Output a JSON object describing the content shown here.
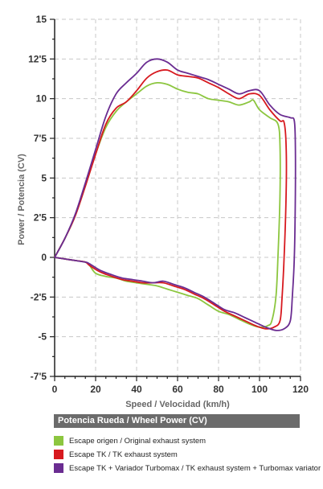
{
  "chart_data": {
    "type": "line",
    "xlabel": "Speed / Velocidad (km/h)",
    "ylabel": "Power / Potencia (CV)",
    "xlim": [
      0,
      120
    ],
    "ylim": [
      -7.5,
      15
    ],
    "x_ticks": [
      0,
      20,
      40,
      60,
      80,
      100,
      120
    ],
    "x_tick_labels": [
      "0",
      "20",
      "40",
      "60",
      "80",
      "100",
      "120"
    ],
    "y_ticks": [
      -7.5,
      -5,
      -2.5,
      0,
      2.5,
      5,
      7.5,
      10,
      12.5,
      15
    ],
    "y_tick_labels": [
      "-7'5",
      "-5",
      "-2'5",
      "0",
      "2'5",
      "5",
      "7'5",
      "10",
      "12'5",
      "15"
    ],
    "grid": true,
    "legend_title": "Potencia Rueda / Wheel Power (CV)",
    "series": [
      {
        "name": "Escape origen / Original exhaust system",
        "color": "#8cc63f",
        "points": [
          [
            0,
            0
          ],
          [
            5,
            1.2
          ],
          [
            10,
            2.6
          ],
          [
            15,
            4.5
          ],
          [
            20,
            6.5
          ],
          [
            25,
            8.2
          ],
          [
            30,
            9.2
          ],
          [
            35,
            9.8
          ],
          [
            40,
            10.3
          ],
          [
            45,
            10.8
          ],
          [
            50,
            11.0
          ],
          [
            55,
            10.9
          ],
          [
            60,
            10.6
          ],
          [
            65,
            10.4
          ],
          [
            70,
            10.3
          ],
          [
            75,
            10.0
          ],
          [
            80,
            9.9
          ],
          [
            85,
            9.8
          ],
          [
            90,
            9.6
          ],
          [
            95,
            9.8
          ],
          [
            97,
            9.9
          ],
          [
            100,
            9.3
          ],
          [
            105,
            8.8
          ],
          [
            109,
            8.4
          ],
          [
            110,
            7.0
          ],
          [
            110,
            4.0
          ],
          [
            109,
            0
          ],
          [
            108,
            -2.5
          ],
          [
            106,
            -4.0
          ],
          [
            104,
            -4.3
          ],
          [
            100,
            -4.4
          ],
          [
            95,
            -4.2
          ],
          [
            90,
            -3.9
          ],
          [
            85,
            -3.6
          ],
          [
            80,
            -3.4
          ],
          [
            75,
            -3.0
          ],
          [
            70,
            -2.6
          ],
          [
            65,
            -2.4
          ],
          [
            60,
            -2.2
          ],
          [
            55,
            -2.0
          ],
          [
            50,
            -1.8
          ],
          [
            45,
            -1.7
          ],
          [
            40,
            -1.6
          ],
          [
            35,
            -1.5
          ],
          [
            30,
            -1.3
          ],
          [
            25,
            -1.2
          ],
          [
            20,
            -1.0
          ],
          [
            17,
            -0.5
          ],
          [
            15,
            -0.3
          ],
          [
            10,
            -0.2
          ],
          [
            5,
            -0.1
          ],
          [
            0,
            0
          ]
        ]
      },
      {
        "name": "Escape TK / TK exhaust  system",
        "color": "#d7191f",
        "points": [
          [
            0,
            0
          ],
          [
            5,
            1.2
          ],
          [
            10,
            2.6
          ],
          [
            15,
            4.5
          ],
          [
            20,
            6.5
          ],
          [
            25,
            8.4
          ],
          [
            30,
            9.4
          ],
          [
            35,
            9.8
          ],
          [
            40,
            10.5
          ],
          [
            45,
            11.3
          ],
          [
            50,
            11.7
          ],
          [
            55,
            11.8
          ],
          [
            60,
            11.5
          ],
          [
            65,
            11.4
          ],
          [
            70,
            11.3
          ],
          [
            75,
            11.0
          ],
          [
            80,
            10.7
          ],
          [
            85,
            10.3
          ],
          [
            90,
            10.0
          ],
          [
            95,
            10.3
          ],
          [
            100,
            10.2
          ],
          [
            105,
            9.3
          ],
          [
            110,
            8.6
          ],
          [
            112,
            8.5
          ],
          [
            113,
            7.0
          ],
          [
            113,
            4.0
          ],
          [
            112,
            0
          ],
          [
            111,
            -2.5
          ],
          [
            110,
            -4.0
          ],
          [
            107,
            -4.4
          ],
          [
            103,
            -4.5
          ],
          [
            98,
            -4.3
          ],
          [
            93,
            -4.0
          ],
          [
            88,
            -3.7
          ],
          [
            83,
            -3.4
          ],
          [
            78,
            -3.0
          ],
          [
            73,
            -2.6
          ],
          [
            68,
            -2.3
          ],
          [
            63,
            -2.0
          ],
          [
            58,
            -1.8
          ],
          [
            53,
            -1.6
          ],
          [
            48,
            -1.6
          ],
          [
            43,
            -1.6
          ],
          [
            38,
            -1.5
          ],
          [
            33,
            -1.4
          ],
          [
            28,
            -1.2
          ],
          [
            22,
            -0.9
          ],
          [
            17,
            -0.5
          ],
          [
            15,
            -0.3
          ],
          [
            10,
            -0.2
          ],
          [
            5,
            -0.1
          ],
          [
            0,
            0
          ]
        ]
      },
      {
        "name": "Escape TK + Variador Turbomax  / TK exhaust  system + Turbomax variator",
        "color": "#6a2c91",
        "points": [
          [
            0,
            0
          ],
          [
            5,
            1.2
          ],
          [
            10,
            2.7
          ],
          [
            15,
            4.7
          ],
          [
            20,
            6.8
          ],
          [
            25,
            8.9
          ],
          [
            30,
            10.3
          ],
          [
            35,
            11.0
          ],
          [
            40,
            11.6
          ],
          [
            45,
            12.3
          ],
          [
            50,
            12.5
          ],
          [
            55,
            12.3
          ],
          [
            60,
            11.8
          ],
          [
            65,
            11.6
          ],
          [
            70,
            11.4
          ],
          [
            75,
            11.2
          ],
          [
            80,
            10.9
          ],
          [
            85,
            10.6
          ],
          [
            90,
            10.3
          ],
          [
            95,
            10.5
          ],
          [
            100,
            10.5
          ],
          [
            105,
            9.6
          ],
          [
            110,
            9.0
          ],
          [
            115,
            8.8
          ],
          [
            117,
            8.6
          ],
          [
            117.5,
            7.0
          ],
          [
            117.5,
            4.0
          ],
          [
            117,
            0
          ],
          [
            116,
            -2.5
          ],
          [
            115,
            -4.0
          ],
          [
            112,
            -4.5
          ],
          [
            108,
            -4.6
          ],
          [
            103,
            -4.4
          ],
          [
            98,
            -4.1
          ],
          [
            93,
            -3.8
          ],
          [
            88,
            -3.5
          ],
          [
            83,
            -3.3
          ],
          [
            78,
            -2.9
          ],
          [
            73,
            -2.5
          ],
          [
            68,
            -2.2
          ],
          [
            63,
            -1.9
          ],
          [
            58,
            -1.7
          ],
          [
            53,
            -1.5
          ],
          [
            48,
            -1.6
          ],
          [
            43,
            -1.5
          ],
          [
            38,
            -1.4
          ],
          [
            33,
            -1.3
          ],
          [
            28,
            -1.1
          ],
          [
            22,
            -0.8
          ],
          [
            17,
            -0.4
          ],
          [
            15,
            -0.3
          ],
          [
            10,
            -0.2
          ],
          [
            5,
            -0.1
          ],
          [
            0,
            0
          ]
        ]
      }
    ]
  }
}
